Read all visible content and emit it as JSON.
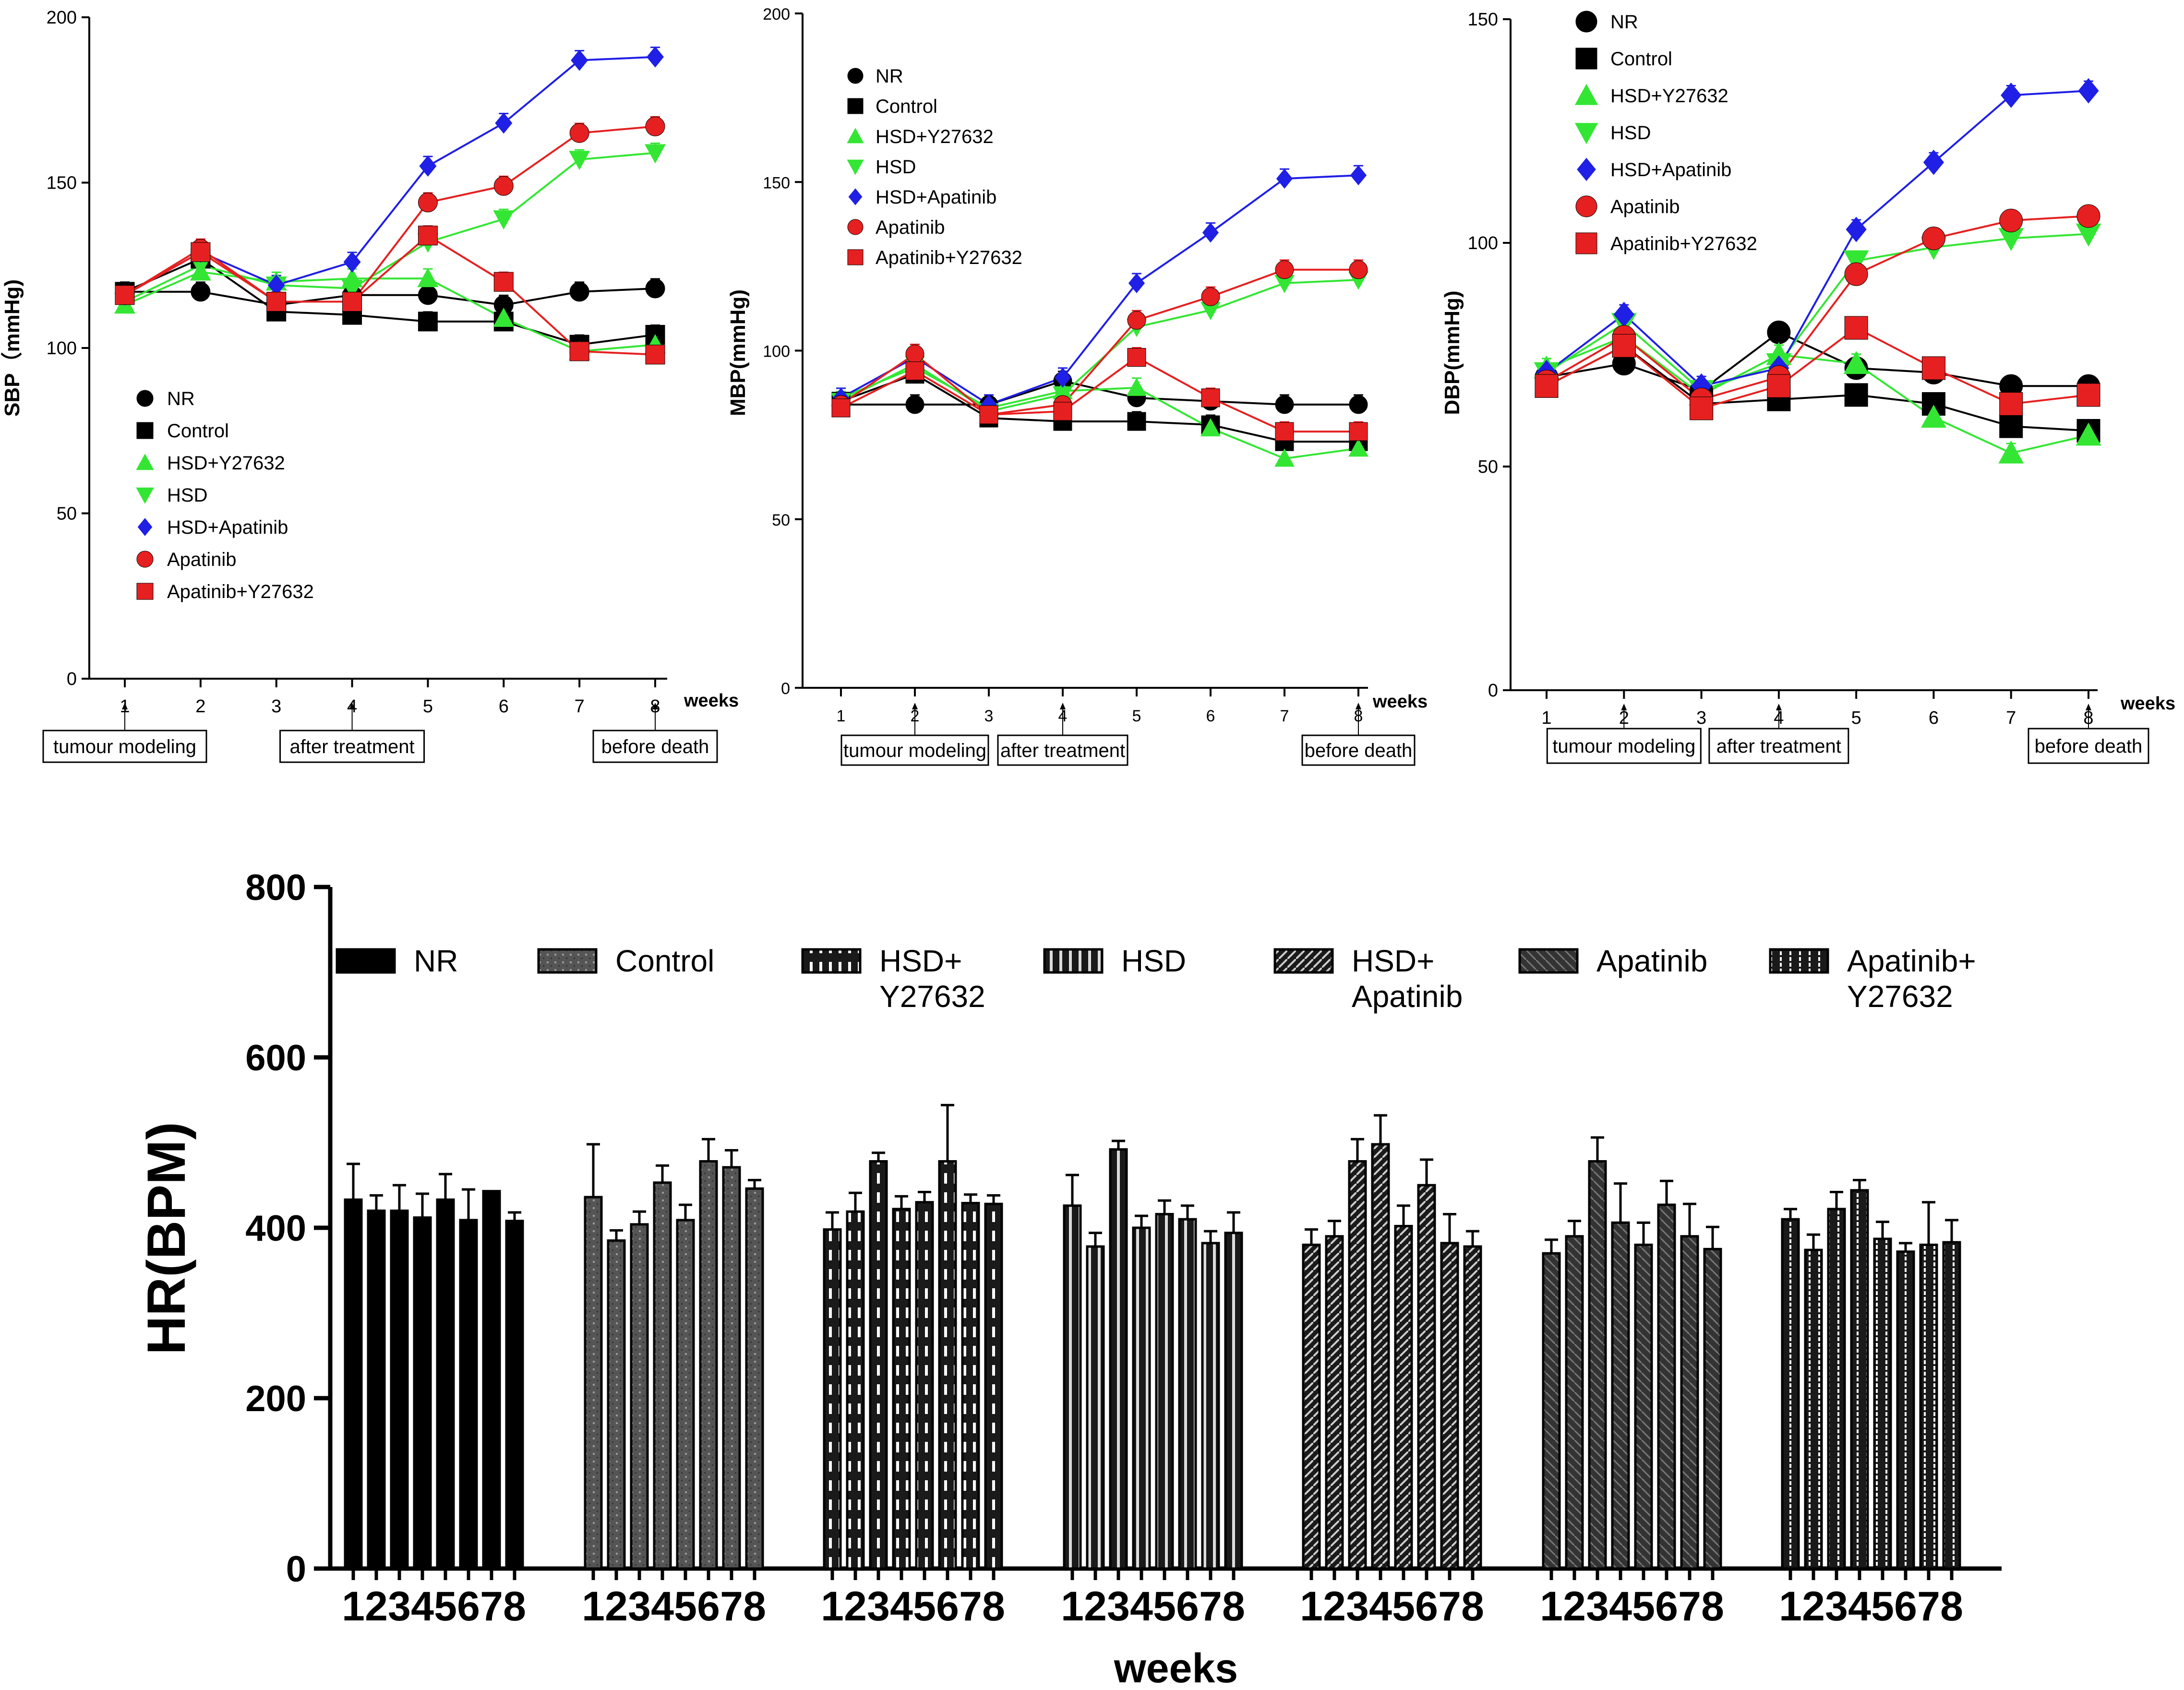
{
  "colors": {
    "NR": "#000000",
    "Control": "#000000",
    "HSD+Y27632": "#33e633",
    "HSD": "#33e633",
    "HSD+Apatinib": "#1f1fe6",
    "Apatinib": "#e62020",
    "Apatinib+Y27632": "#e62020"
  },
  "markers": {
    "NR": "circle-black",
    "Control": "square-black",
    "HSD+Y27632": "triangle-up-green",
    "HSD": "triangle-down-green",
    "HSD+Apatinib": "diamond-blue",
    "Apatinib": "circle-red",
    "Apatinib+Y27632": "square-red"
  },
  "chart_data": [
    {
      "id": "sbp",
      "type": "line",
      "ylabel": "SBP（mmHg)",
      "xlabel": "weeks",
      "ylim": [
        0,
        200
      ],
      "yticks": [
        0,
        50,
        100,
        150,
        200
      ],
      "x": [
        1,
        2,
        3,
        4,
        5,
        6,
        7,
        8
      ],
      "legend_title_order": [
        "NR",
        "Control",
        "HSD+Y27632",
        "HSD",
        "HSD+Apatinib",
        "Apatinib",
        "Apatinib+Y27632"
      ],
      "legend_labels": [
        "NR",
        "Control",
        "HSD+Y27632",
        "HSD",
        "HSD+Apatinib",
        "Apatinib",
        "Apatinib+Y27632"
      ],
      "legend_position": "lower-left",
      "notes": [
        {
          "x": 1,
          "label": "tumour modeling"
        },
        {
          "x": 4,
          "label": "after treatment"
        },
        {
          "x": 8,
          "label": "before death"
        }
      ],
      "series": [
        {
          "name": "NR",
          "values": [
            117,
            117,
            113,
            116,
            116,
            113,
            117,
            118
          ]
        },
        {
          "name": "Control",
          "values": [
            117,
            127,
            111,
            110,
            108,
            108,
            101,
            104
          ]
        },
        {
          "name": "HSD+Y27632",
          "values": [
            113,
            123,
            120,
            121,
            121,
            109,
            99,
            101
          ]
        },
        {
          "name": "HSD",
          "values": [
            114,
            125,
            119,
            118,
            132,
            139,
            157,
            159
          ]
        },
        {
          "name": "HSD+Apatinib",
          "values": [
            116,
            129,
            119,
            126,
            155,
            168,
            187,
            188
          ]
        },
        {
          "name": "Apatinib",
          "values": [
            116,
            130,
            114,
            114,
            144,
            149,
            165,
            167
          ]
        },
        {
          "name": "Apatinib+Y27632",
          "values": [
            116,
            129,
            114,
            114,
            134,
            120,
            99,
            98
          ]
        }
      ]
    },
    {
      "id": "mbp",
      "type": "line",
      "ylabel": "MBP(mmHg)",
      "xlabel": "weeks",
      "ylim": [
        0,
        200
      ],
      "yticks": [
        0,
        50,
        100,
        150,
        200
      ],
      "x": [
        1,
        2,
        3,
        4,
        5,
        6,
        7,
        8
      ],
      "legend_labels": [
        "NR",
        "Control",
        "HSD+Y27632",
        "HSD",
        "HSD+Apatinib",
        "Apatinib",
        "Apatinib+Y27632"
      ],
      "legend_position": "top-left",
      "notes": [
        {
          "x": 2,
          "label": "tumour modeling"
        },
        {
          "x": 4,
          "label": "after treatment"
        },
        {
          "x": 8,
          "label": "before death"
        }
      ],
      "series": [
        {
          "name": "NR",
          "values": [
            84,
            84,
            84,
            91,
            86,
            85,
            84,
            84
          ]
        },
        {
          "name": "Control",
          "values": [
            85,
            93,
            80,
            79,
            79,
            78,
            73,
            73
          ]
        },
        {
          "name": "HSD+Y27632",
          "values": [
            86,
            95,
            83,
            88,
            89,
            77,
            68,
            71
          ]
        },
        {
          "name": "HSD",
          "values": [
            85,
            96,
            82,
            87,
            107,
            112,
            120,
            121
          ]
        },
        {
          "name": "HSD+Apatinib",
          "values": [
            86,
            98,
            84,
            92,
            120,
            135,
            151,
            152
          ]
        },
        {
          "name": "Apatinib",
          "values": [
            84,
            99,
            81,
            84,
            109,
            116,
            124,
            124
          ]
        },
        {
          "name": "Apatinib+Y27632",
          "values": [
            83,
            94,
            81,
            82,
            98,
            86,
            76,
            76
          ]
        }
      ]
    },
    {
      "id": "dbp",
      "type": "line",
      "ylabel": "DBP(mmHg)",
      "xlabel": "weeks",
      "ylim": [
        0,
        150
      ],
      "yticks": [
        0,
        50,
        100,
        150
      ],
      "x": [
        1,
        2,
        3,
        4,
        5,
        6,
        7,
        8
      ],
      "legend_labels": [
        "NR",
        "Control",
        "HSD+Y27632",
        "HSD",
        "HSD+Apatinib",
        "Apatinib",
        "Apatinib+Y27632"
      ],
      "legend_position": "top-left",
      "notes": [
        {
          "x": 2,
          "label": "tumour modeling"
        },
        {
          "x": 4,
          "label": "after treatment"
        },
        {
          "x": 8,
          "label": "before death"
        }
      ],
      "series": [
        {
          "name": "NR",
          "values": [
            70,
            73,
            67,
            80,
            72,
            71,
            68,
            68
          ]
        },
        {
          "name": "Control",
          "values": [
            68,
            77,
            64,
            65,
            66,
            64,
            59,
            58
          ]
        },
        {
          "name": "HSD+Y27632",
          "values": [
            72,
            79,
            66,
            75,
            73,
            61,
            53,
            57
          ]
        },
        {
          "name": "HSD",
          "values": [
            71,
            82,
            67,
            73,
            96,
            99,
            101,
            102
          ]
        },
        {
          "name": "HSD+Apatinib",
          "values": [
            71,
            84,
            68,
            72,
            103,
            118,
            133,
            134
          ]
        },
        {
          "name": "Apatinib",
          "values": [
            69,
            79,
            65,
            70,
            93,
            101,
            105,
            106
          ]
        },
        {
          "name": "Apatinib+Y27632",
          "values": [
            68,
            77,
            63,
            68,
            81,
            72,
            64,
            66
          ]
        }
      ]
    },
    {
      "id": "hr",
      "type": "bar",
      "ylabel": "HR(BPM)",
      "xlabel": "weeks",
      "ylim": [
        0,
        800
      ],
      "yticks": [
        0,
        200,
        400,
        600,
        800
      ],
      "categories": [
        "1",
        "2",
        "3",
        "4",
        "5",
        "6",
        "7",
        "8"
      ],
      "legend": [
        {
          "name": "NR",
          "line1": "NR",
          "line2": ""
        },
        {
          "name": "Control",
          "line1": "Control",
          "line2": ""
        },
        {
          "name": "HSD+Y27632",
          "line1": "HSD+",
          "line2": "Y27632"
        },
        {
          "name": "HSD",
          "line1": "HSD",
          "line2": ""
        },
        {
          "name": "HSD+Apatinib",
          "line1": "HSD+",
          "line2": "Apatinib"
        },
        {
          "name": "Apatinib",
          "line1": "Apatinib",
          "line2": ""
        },
        {
          "name": "Apatinib+Y27632",
          "line1": "Apatinib+",
          "line2": "Y27632"
        }
      ],
      "series": [
        {
          "name": "NR",
          "values": [
            433,
            420,
            420,
            412,
            433,
            409,
            443,
            408
          ],
          "errors": [
            42,
            18,
            30,
            28,
            30,
            36,
            0,
            10
          ]
        },
        {
          "name": "Control",
          "values": [
            436,
            385,
            404,
            453,
            409,
            478,
            471,
            446
          ],
          "errors": [
            62,
            12,
            15,
            20,
            18,
            26,
            20,
            10
          ]
        },
        {
          "name": "HSD+Y27632",
          "values": [
            398,
            419,
            478,
            422,
            430,
            478,
            429,
            428
          ],
          "errors": [
            20,
            22,
            10,
            15,
            12,
            66,
            10,
            10
          ]
        },
        {
          "name": "HSD",
          "values": [
            426,
            378,
            492,
            400,
            416,
            410,
            382,
            394
          ],
          "errors": [
            36,
            16,
            10,
            14,
            16,
            16,
            14,
            24
          ]
        },
        {
          "name": "HSD+Apatinib",
          "values": [
            380,
            390,
            478,
            498,
            402,
            450,
            382,
            378
          ],
          "errors": [
            18,
            18,
            26,
            34,
            24,
            30,
            34,
            18
          ]
        },
        {
          "name": "Apatinib",
          "values": [
            370,
            390,
            478,
            406,
            380,
            427,
            390,
            375
          ],
          "errors": [
            16,
            18,
            28,
            46,
            26,
            28,
            38,
            26
          ]
        },
        {
          "name": "Apatinib+Y27632",
          "values": [
            410,
            374,
            422,
            444,
            387,
            372,
            380,
            383
          ],
          "errors": [
            12,
            18,
            20,
            12,
            20,
            10,
            50,
            26
          ]
        }
      ]
    }
  ]
}
